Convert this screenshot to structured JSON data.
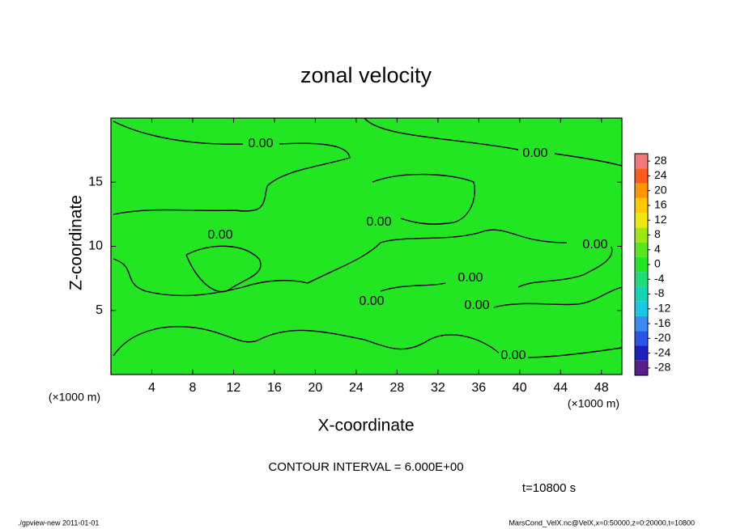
{
  "chart_data": {
    "type": "contour",
    "title": "zonal velocity",
    "xlabel": "X-coordinate",
    "ylabel": "Z-coordinate",
    "x_scale_label": "(×1000 m)",
    "y_scale_label": "(×1000 m)",
    "xlim": [
      0,
      50
    ],
    "xticks": [
      4,
      8,
      12,
      16,
      20,
      24,
      28,
      32,
      36,
      40,
      44,
      48
    ],
    "ylim": [
      0,
      20
    ],
    "yticks": [
      5,
      10,
      15
    ],
    "field_color": "#22e622",
    "contour_labels": [
      "0.00",
      "0.00",
      "0.00",
      "0.00",
      "0.00",
      "0.00",
      "0.00",
      "0.00",
      "0.00"
    ],
    "colorbar": {
      "lim": [
        -30,
        30
      ],
      "ticks": [
        28,
        24,
        20,
        16,
        12,
        8,
        4,
        0,
        -4,
        -8,
        -12,
        -16,
        -20,
        -24,
        -28
      ],
      "colors": [
        "#5a1e8c",
        "#1e1ebe",
        "#2a55e6",
        "#3c8cf0",
        "#19c8e6",
        "#14d2b4",
        "#1edc78",
        "#22e622",
        "#5ae61e",
        "#a0e614",
        "#f0e614",
        "#ffc800",
        "#ff9600",
        "#ff5a1e",
        "#f07878"
      ]
    },
    "contour_interval_label": "CONTOUR INTERVAL = 6.000E+00",
    "time_label": "t=10800 s",
    "footer_left": "./gpview-new  2011-01-01",
    "footer_right": "MarsCond_VelX.nc@VelX,x=0:50000,z=0:20000,t=10800"
  }
}
